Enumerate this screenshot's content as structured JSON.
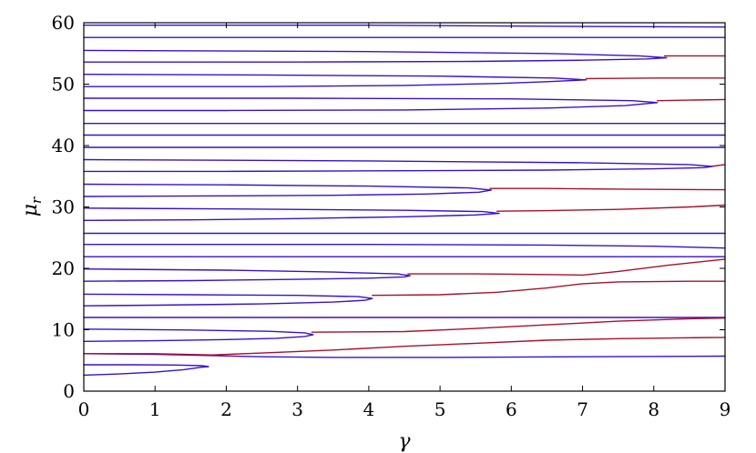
{
  "chart_data": {
    "type": "line",
    "title": "",
    "xlabel": "γ",
    "ylabel": "μ",
    "ylabel_subscript": "r",
    "xlim": [
      0,
      9
    ],
    "ylim": [
      0,
      60
    ],
    "xticks": [
      "0",
      "1",
      "2",
      "3",
      "4",
      "5",
      "6",
      "7",
      "8",
      "9"
    ],
    "yticks": [
      "0",
      "10",
      "20",
      "30",
      "40",
      "50",
      "60"
    ],
    "grid": false,
    "colors": {
      "blue": "#3a10c8",
      "red": "#a8102a"
    },
    "series": [
      {
        "color": "blue",
        "points": [
          [
            0,
            2.6
          ],
          [
            0.5,
            2.8
          ],
          [
            1.0,
            3.1
          ],
          [
            1.4,
            3.5
          ],
          [
            1.65,
            3.9
          ],
          [
            1.75,
            4.0
          ],
          [
            1.65,
            4.15
          ],
          [
            1.3,
            4.25
          ],
          [
            0.7,
            4.3
          ],
          [
            0,
            4.3
          ]
        ]
      },
      {
        "color": "blue",
        "points": [
          [
            0,
            8.1
          ],
          [
            1.0,
            8.2
          ],
          [
            2.0,
            8.4
          ],
          [
            2.7,
            8.6
          ],
          [
            3.1,
            8.9
          ],
          [
            3.22,
            9.2
          ],
          [
            3.1,
            9.5
          ],
          [
            2.6,
            9.75
          ],
          [
            1.5,
            9.95
          ],
          [
            0,
            10.1
          ]
        ]
      },
      {
        "color": "blue",
        "points": [
          [
            0,
            13.9
          ],
          [
            1.0,
            14.0
          ],
          [
            2.5,
            14.2
          ],
          [
            3.5,
            14.5
          ],
          [
            3.95,
            14.8
          ],
          [
            4.05,
            15.1
          ],
          [
            3.85,
            15.4
          ],
          [
            3.0,
            15.6
          ],
          [
            1.5,
            15.7
          ],
          [
            0,
            15.8
          ]
        ]
      },
      {
        "color": "blue",
        "points": [
          [
            0,
            17.9
          ],
          [
            1.5,
            18.0
          ],
          [
            3.0,
            18.2
          ],
          [
            4.0,
            18.4
          ],
          [
            4.5,
            18.6
          ],
          [
            4.58,
            18.8
          ],
          [
            4.4,
            19.1
          ],
          [
            3.5,
            19.4
          ],
          [
            2.0,
            19.7
          ],
          [
            0,
            19.9
          ]
        ]
      },
      {
        "color": "blue",
        "points": [
          [
            0,
            27.8
          ],
          [
            1.5,
            27.9
          ],
          [
            3.0,
            28.1
          ],
          [
            4.5,
            28.4
          ],
          [
            5.5,
            28.7
          ],
          [
            5.83,
            28.95
          ],
          [
            5.6,
            29.25
          ],
          [
            4.5,
            29.45
          ],
          [
            2.5,
            29.65
          ],
          [
            0,
            29.8
          ]
        ]
      },
      {
        "color": "blue",
        "points": [
          [
            0,
            31.7
          ],
          [
            2.0,
            31.8
          ],
          [
            3.5,
            31.9
          ],
          [
            4.8,
            32.1
          ],
          [
            5.55,
            32.4
          ],
          [
            5.72,
            32.75
          ],
          [
            5.4,
            33.1
          ],
          [
            4.0,
            33.4
          ],
          [
            2.0,
            33.6
          ],
          [
            0,
            33.7
          ]
        ]
      },
      {
        "color": "blue",
        "points": [
          [
            0,
            35.8
          ],
          [
            2.0,
            35.8
          ],
          [
            4.5,
            35.9
          ],
          [
            6.5,
            36.0
          ],
          [
            8.0,
            36.2
          ],
          [
            8.7,
            36.4
          ],
          [
            8.82,
            36.6
          ],
          [
            8.5,
            36.9
          ],
          [
            7.0,
            37.2
          ],
          [
            4.0,
            37.5
          ],
          [
            0,
            37.7
          ]
        ]
      },
      {
        "color": "blue",
        "points": [
          [
            0,
            45.7
          ],
          [
            2.0,
            45.7
          ],
          [
            4.5,
            45.8
          ],
          [
            6.5,
            46.1
          ],
          [
            7.6,
            46.5
          ],
          [
            8.05,
            47.0
          ],
          [
            7.7,
            47.3
          ],
          [
            6.0,
            47.6
          ],
          [
            3.0,
            47.7
          ],
          [
            0,
            47.7
          ]
        ]
      },
      {
        "color": "blue",
        "points": [
          [
            0,
            49.6
          ],
          [
            2.5,
            49.6
          ],
          [
            4.5,
            49.8
          ],
          [
            5.8,
            50.1
          ],
          [
            6.5,
            50.4
          ],
          [
            7.05,
            50.7
          ],
          [
            6.6,
            51.0
          ],
          [
            5.0,
            51.3
          ],
          [
            2.5,
            51.5
          ],
          [
            0,
            51.6
          ]
        ]
      },
      {
        "color": "blue",
        "points": [
          [
            0,
            53.6
          ],
          [
            3.0,
            53.6
          ],
          [
            5.5,
            53.7
          ],
          [
            7.0,
            53.9
          ],
          [
            7.9,
            54.1
          ],
          [
            8.18,
            54.3
          ],
          [
            7.8,
            54.6
          ],
          [
            6.5,
            55.0
          ],
          [
            4.0,
            55.3
          ],
          [
            0,
            55.5
          ]
        ]
      },
      {
        "color": "blue",
        "points": [
          [
            0,
            6.1
          ],
          [
            1.0,
            6.0
          ],
          [
            1.8,
            5.8
          ],
          [
            2.5,
            5.6
          ],
          [
            3.5,
            5.5
          ],
          [
            5.0,
            5.5
          ],
          [
            7.0,
            5.6
          ],
          [
            9.0,
            5.7
          ]
        ]
      },
      {
        "color": "blue",
        "points": [
          [
            0,
            12.0
          ],
          [
            9.0,
            12.0
          ]
        ]
      },
      {
        "color": "blue",
        "points": [
          [
            0,
            21.9
          ],
          [
            9.0,
            21.9
          ]
        ]
      },
      {
        "color": "blue",
        "points": [
          [
            0,
            23.9
          ],
          [
            4.0,
            23.9
          ],
          [
            6.5,
            23.8
          ],
          [
            8.0,
            23.6
          ],
          [
            9.0,
            23.3
          ]
        ]
      },
      {
        "color": "blue",
        "points": [
          [
            0,
            25.7
          ],
          [
            9.0,
            25.7
          ]
        ]
      },
      {
        "color": "blue",
        "points": [
          [
            0,
            39.7
          ],
          [
            9.0,
            39.7
          ]
        ]
      },
      {
        "color": "blue",
        "points": [
          [
            0,
            41.7
          ],
          [
            9.0,
            41.7
          ]
        ]
      },
      {
        "color": "blue",
        "points": [
          [
            0,
            43.6
          ],
          [
            9.0,
            43.6
          ]
        ]
      },
      {
        "color": "blue",
        "points": [
          [
            0,
            57.6
          ],
          [
            9.0,
            57.6
          ]
        ]
      },
      {
        "color": "blue",
        "points": [
          [
            0,
            59.6
          ],
          [
            4.0,
            59.6
          ],
          [
            7.0,
            59.4
          ],
          [
            9.0,
            59.3
          ]
        ]
      },
      {
        "color": "red",
        "points": [
          [
            0,
            6.1
          ],
          [
            1.0,
            6.1
          ],
          [
            1.8,
            5.9
          ],
          [
            2.5,
            6.2
          ],
          [
            3.5,
            6.7
          ],
          [
            4.5,
            7.3
          ],
          [
            5.5,
            7.8
          ],
          [
            6.5,
            8.3
          ],
          [
            7.5,
            8.55
          ],
          [
            8.5,
            8.7
          ],
          [
            9.0,
            8.75
          ]
        ]
      },
      {
        "color": "red",
        "points": [
          [
            3.2,
            9.6
          ],
          [
            4.5,
            9.7
          ],
          [
            5.5,
            10.2
          ],
          [
            6.5,
            10.8
          ],
          [
            7.5,
            11.4
          ],
          [
            8.5,
            11.8
          ],
          [
            9.0,
            11.9
          ]
        ]
      },
      {
        "color": "red",
        "points": [
          [
            4.05,
            15.6
          ],
          [
            5.0,
            15.7
          ],
          [
            5.8,
            16.1
          ],
          [
            6.5,
            16.8
          ],
          [
            7.0,
            17.5
          ],
          [
            7.5,
            17.8
          ],
          [
            8.5,
            17.9
          ],
          [
            9.0,
            17.9
          ]
        ]
      },
      {
        "color": "red",
        "points": [
          [
            4.55,
            19.1
          ],
          [
            5.5,
            19.1
          ],
          [
            6.5,
            19.0
          ],
          [
            7.0,
            18.9
          ],
          [
            7.5,
            19.5
          ],
          [
            8.2,
            20.5
          ],
          [
            9.0,
            21.5
          ]
        ]
      },
      {
        "color": "red",
        "points": [
          [
            5.8,
            29.3
          ],
          [
            6.5,
            29.4
          ],
          [
            7.5,
            29.6
          ],
          [
            8.5,
            30.0
          ],
          [
            9.0,
            30.3
          ]
        ]
      },
      {
        "color": "red",
        "points": [
          [
            5.7,
            33.0
          ],
          [
            6.5,
            33.0
          ],
          [
            7.5,
            32.9
          ],
          [
            9.0,
            32.8
          ]
        ]
      },
      {
        "color": "red",
        "points": [
          [
            8.8,
            36.6
          ],
          [
            9.0,
            36.9
          ]
        ]
      },
      {
        "color": "red",
        "points": [
          [
            8.05,
            47.3
          ],
          [
            8.5,
            47.4
          ],
          [
            9.0,
            47.5
          ]
        ]
      },
      {
        "color": "red",
        "points": [
          [
            7.05,
            50.9
          ],
          [
            8.0,
            51.0
          ],
          [
            9.0,
            51.0
          ]
        ]
      },
      {
        "color": "red",
        "points": [
          [
            8.15,
            54.6
          ],
          [
            8.6,
            54.6
          ],
          [
            9.0,
            54.6
          ]
        ]
      }
    ]
  }
}
